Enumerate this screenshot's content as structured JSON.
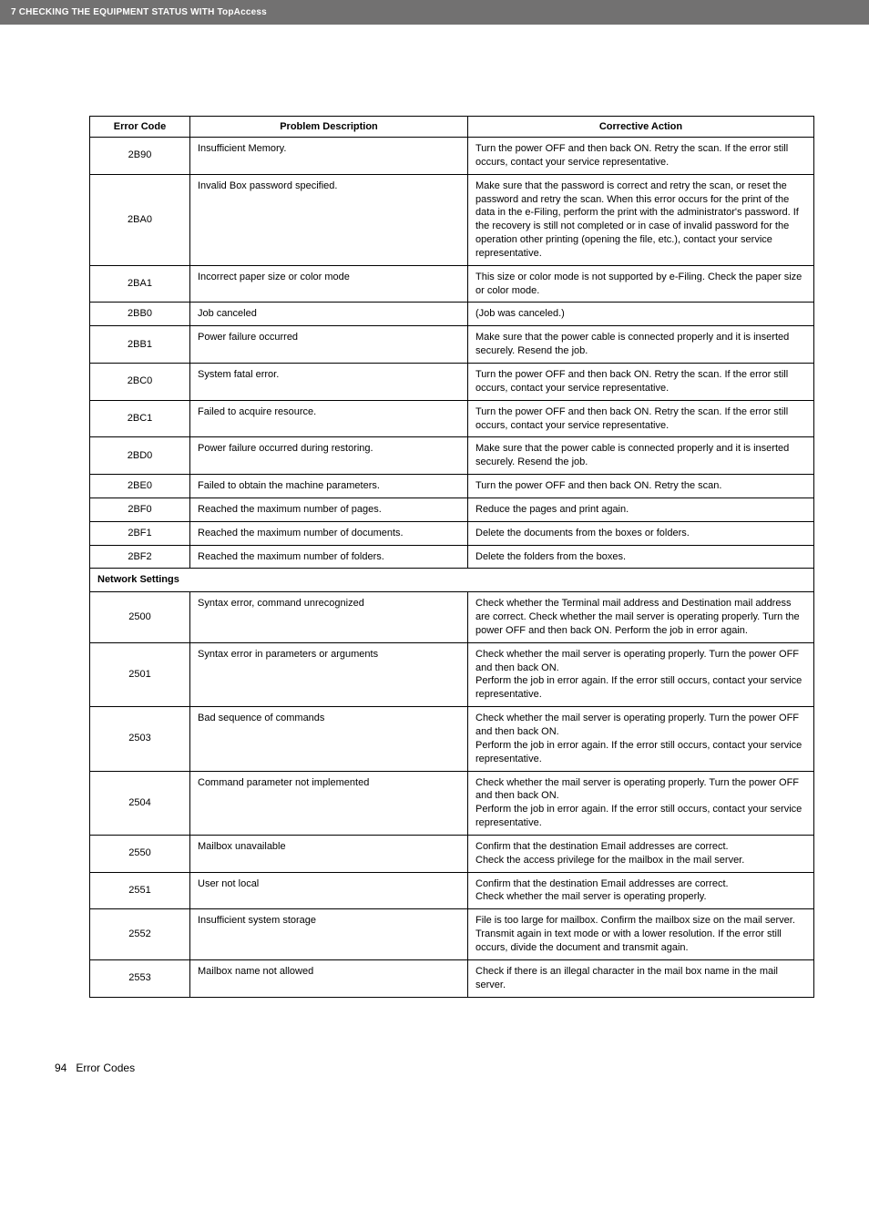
{
  "header": {
    "chapter": "7 CHECKING THE EQUIPMENT STATUS WITH TopAccess"
  },
  "table": {
    "headers": {
      "code": "Error Code",
      "desc": "Problem Description",
      "action": "Corrective Action"
    },
    "rows": [
      {
        "code": "2B90",
        "desc": "Insufficient Memory.",
        "action": "Turn the power OFF and then back ON. Retry the scan. If the error still occurs, contact your service representative."
      },
      {
        "code": "2BA0",
        "desc": "Invalid Box password specified.",
        "action": "Make sure that the password is correct and retry the scan, or reset the password and retry the scan. When this error occurs for the print of the data in the e-Filing, perform the print with the administrator's password. If the recovery is still not completed or in case of invalid password for the operation other printing (opening the file, etc.), contact your service representative."
      },
      {
        "code": "2BA1",
        "desc": "Incorrect paper size or color mode",
        "action": "This size or color mode is not supported by e-Filing. Check the paper size or color mode."
      },
      {
        "code": "2BB0",
        "desc": "Job canceled",
        "action": "(Job was canceled.)"
      },
      {
        "code": "2BB1",
        "desc": "Power failure occurred",
        "action": "Make sure that the power cable is connected properly and it is inserted securely. Resend the job."
      },
      {
        "code": "2BC0",
        "desc": "System fatal error.",
        "action": "Turn the power OFF and then back ON. Retry the scan. If the error still occurs, contact your service representative."
      },
      {
        "code": "2BC1",
        "desc": "Failed to acquire resource.",
        "action": "Turn the power OFF and then back ON. Retry the scan. If the error still occurs, contact your service representative."
      },
      {
        "code": "2BD0",
        "desc": "Power failure occurred during restoring.",
        "action": "Make sure that the power cable is connected properly and it is inserted securely. Resend the job."
      },
      {
        "code": "2BE0",
        "desc": "Failed to obtain the machine parameters.",
        "action": "Turn the power OFF and then back ON. Retry the scan."
      },
      {
        "code": "2BF0",
        "desc": "Reached the maximum number of pages.",
        "action": "Reduce the pages and print again."
      },
      {
        "code": "2BF1",
        "desc": "Reached the maximum number of documents.",
        "action": "Delete the documents from the boxes or folders."
      },
      {
        "code": "2BF2",
        "desc": "Reached the maximum number of folders.",
        "action": "Delete the folders from the boxes."
      }
    ],
    "section": "Network Settings",
    "rows2": [
      {
        "code": "2500",
        "desc": "Syntax error, command unrecognized",
        "action": "Check whether the Terminal mail address and Destination mail address are correct. Check whether the mail server is operating properly. Turn the power OFF and then back ON. Perform the job in error again."
      },
      {
        "code": "2501",
        "desc": "Syntax error in parameters or arguments",
        "action": "Check whether the mail server is operating properly. Turn the power OFF and then back ON.\nPerform the job in error again. If the error still occurs, contact your service representative."
      },
      {
        "code": "2503",
        "desc": "Bad sequence of commands",
        "action": "Check whether the mail server is operating properly. Turn the power OFF and then back ON.\nPerform the job in error again. If the error still occurs, contact your service representative."
      },
      {
        "code": "2504",
        "desc": "Command parameter not implemented",
        "action": "Check whether the mail server is operating properly. Turn the power OFF and then back ON.\nPerform the job in error again. If the error still occurs, contact your service representative."
      },
      {
        "code": "2550",
        "desc": "Mailbox unavailable",
        "action": "Confirm that the destination Email addresses are correct.\nCheck the access privilege for the mailbox in the mail server."
      },
      {
        "code": "2551",
        "desc": "User not local",
        "action": "Confirm that the destination Email addresses are correct.\nCheck whether the mail server is operating properly."
      },
      {
        "code": "2552",
        "desc": "Insufficient system storage",
        "action": "File is too large for mailbox. Confirm the mailbox size on the mail server. Transmit again in text mode or with a lower resolution. If the error still occurs, divide the document and transmit again."
      },
      {
        "code": "2553",
        "desc": "Mailbox name not allowed",
        "action": "Check if there is an illegal character in the mail box name in the mail server."
      }
    ]
  },
  "footer": {
    "page": "94",
    "title": "Error Codes"
  }
}
